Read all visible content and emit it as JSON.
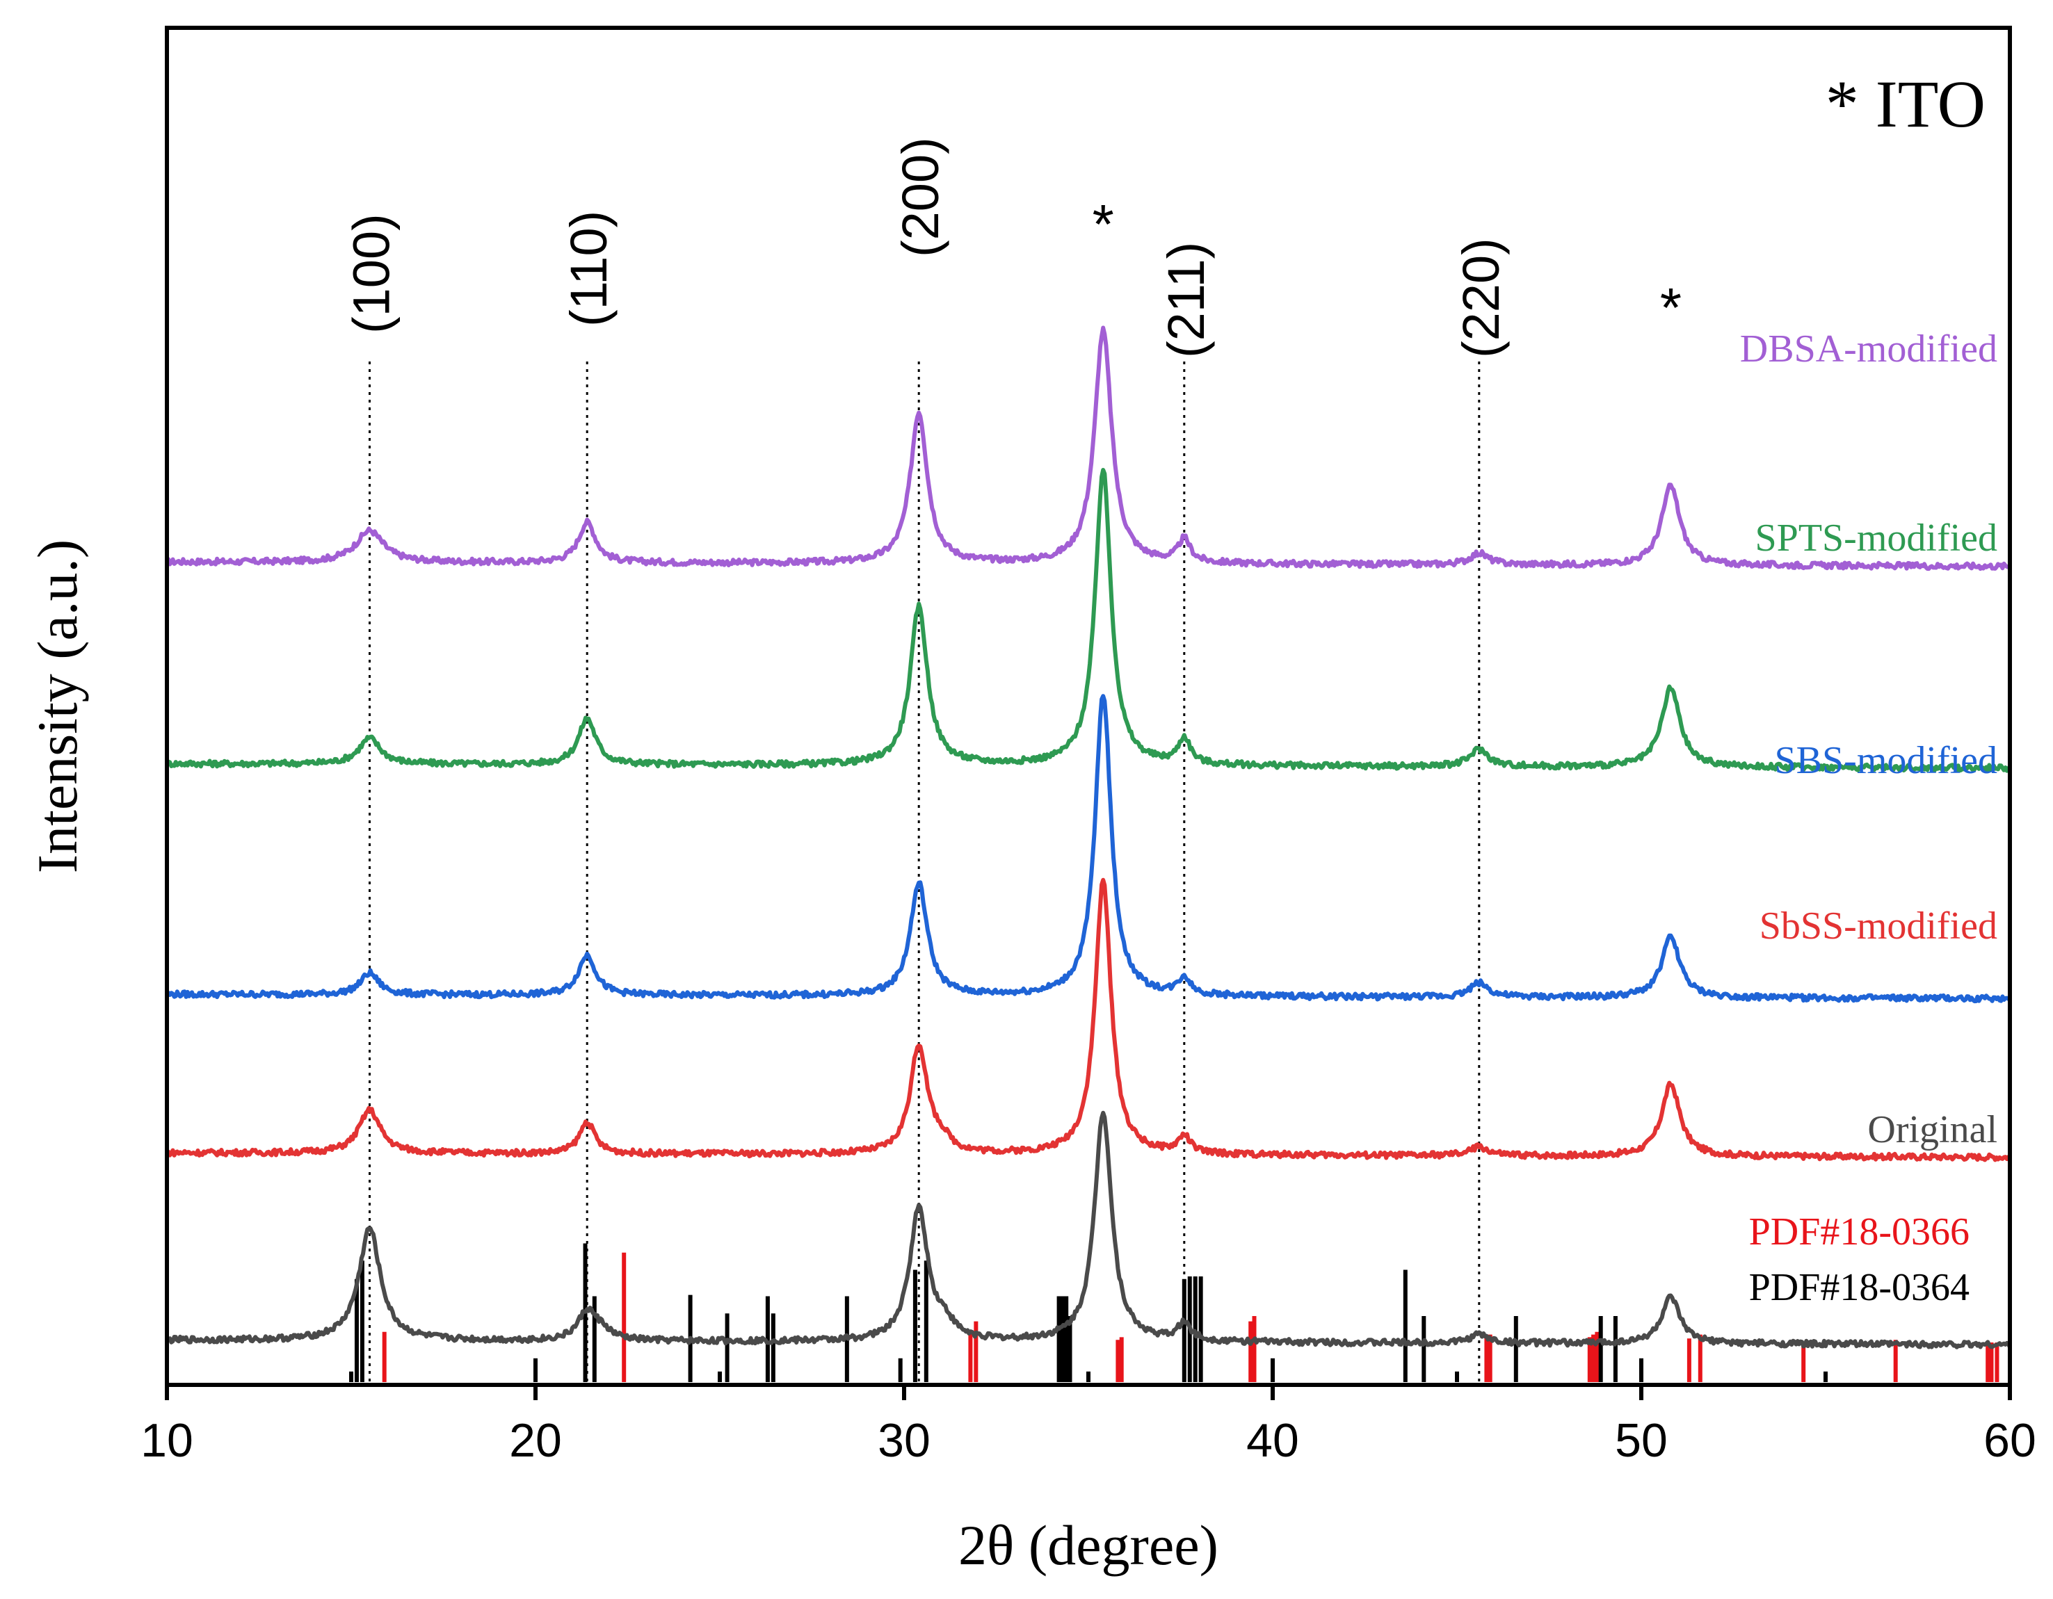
{
  "chart_data": {
    "type": "line",
    "xlabel": "2θ (degree)",
    "ylabel": "Intensity (a.u.)",
    "xlim": [
      10,
      60
    ],
    "x_ticks": [
      "10",
      "20",
      "30",
      "40",
      "50",
      "60"
    ],
    "ito_legend": "* ITO",
    "ito_marker": "*",
    "ito_peaks": [
      35.4,
      50.8
    ],
    "hkl_labels": [
      {
        "label": "(100)",
        "x": 15.5
      },
      {
        "label": "(110)",
        "x": 21.4
      },
      {
        "label": "(200)",
        "x": 30.4
      },
      {
        "label": "(211)",
        "x": 37.6
      },
      {
        "label": "(220)",
        "x": 45.6
      }
    ],
    "series": [
      {
        "name": "DBSA-modified",
        "color": "#a25fd4",
        "baseline": 5.7,
        "peaks": [
          [
            15.5,
            0.22,
            0.45
          ],
          [
            21.4,
            0.28,
            0.28
          ],
          [
            30.4,
            1.05,
            0.28
          ],
          [
            35.4,
            1.62,
            0.28
          ],
          [
            37.6,
            0.16,
            0.2
          ],
          [
            45.6,
            0.08,
            0.3
          ],
          [
            50.8,
            0.55,
            0.3
          ]
        ]
      },
      {
        "name": "SPTS-modified",
        "color": "#2e9a52",
        "baseline": 4.3,
        "peaks": [
          [
            15.5,
            0.18,
            0.35
          ],
          [
            21.4,
            0.32,
            0.28
          ],
          [
            30.4,
            1.1,
            0.28
          ],
          [
            35.4,
            2.05,
            0.26
          ],
          [
            37.6,
            0.18,
            0.2
          ],
          [
            45.6,
            0.12,
            0.3
          ],
          [
            50.8,
            0.55,
            0.3
          ]
        ]
      },
      {
        "name": "SBS-modified",
        "color": "#1f64d6",
        "baseline": 2.7,
        "peaks": [
          [
            15.5,
            0.15,
            0.3
          ],
          [
            21.4,
            0.28,
            0.28
          ],
          [
            30.4,
            0.78,
            0.28
          ],
          [
            35.4,
            2.1,
            0.26
          ],
          [
            37.6,
            0.12,
            0.2
          ],
          [
            45.6,
            0.1,
            0.3
          ],
          [
            50.8,
            0.42,
            0.3
          ]
        ]
      },
      {
        "name": "SbSS-modified",
        "color": "#e33333",
        "baseline": 1.6,
        "peaks": [
          [
            15.5,
            0.3,
            0.35
          ],
          [
            21.4,
            0.22,
            0.25
          ],
          [
            30.4,
            0.75,
            0.28
          ],
          [
            31.0,
            0.08,
            0.3
          ],
          [
            35.4,
            1.9,
            0.26
          ],
          [
            37.6,
            0.12,
            0.2
          ],
          [
            45.6,
            0.06,
            0.3
          ],
          [
            50.8,
            0.5,
            0.3
          ]
        ]
      },
      {
        "name": "Original",
        "color": "#4a4a4a",
        "baseline": 0.3,
        "peaks": [
          [
            15.5,
            0.78,
            0.35
          ],
          [
            21.4,
            0.2,
            0.3
          ],
          [
            21.8,
            0.06,
            0.3
          ],
          [
            30.4,
            0.92,
            0.3
          ],
          [
            31.1,
            0.1,
            0.3
          ],
          [
            35.4,
            1.6,
            0.28
          ],
          [
            37.6,
            0.12,
            0.22
          ],
          [
            45.6,
            0.06,
            0.3
          ],
          [
            50.8,
            0.32,
            0.3
          ]
        ]
      }
    ],
    "reference_patterns": [
      {
        "name": "PDF#18-0366",
        "color": "#e8141a",
        "sticks": [
          [
            15.9,
            0.38
          ],
          [
            22.4,
            0.98
          ],
          [
            31.8,
            0.38
          ],
          [
            31.95,
            0.46
          ],
          [
            35.8,
            0.32
          ],
          [
            35.9,
            0.34
          ],
          [
            39.4,
            0.46
          ],
          [
            39.5,
            0.5
          ],
          [
            45.8,
            0.35
          ],
          [
            45.9,
            0.36
          ],
          [
            48.6,
            0.34
          ],
          [
            48.7,
            0.36
          ],
          [
            48.8,
            0.38
          ],
          [
            51.3,
            0.33
          ],
          [
            51.6,
            0.36
          ],
          [
            54.4,
            0.3
          ],
          [
            56.9,
            0.32
          ],
          [
            59.4,
            0.3
          ],
          [
            59.5,
            0.3
          ],
          [
            59.65,
            0.3
          ]
        ]
      },
      {
        "name": "PDF#18-0364",
        "color": "#000000",
        "sticks": [
          [
            15.0,
            0.08
          ],
          [
            15.15,
            0.78
          ],
          [
            15.3,
            0.92
          ],
          [
            20.0,
            0.18
          ],
          [
            21.35,
            1.05
          ],
          [
            21.6,
            0.65
          ],
          [
            24.2,
            0.66
          ],
          [
            25.0,
            0.08
          ],
          [
            25.2,
            0.52
          ],
          [
            26.3,
            0.65
          ],
          [
            26.45,
            0.52
          ],
          [
            28.45,
            0.65
          ],
          [
            29.9,
            0.18
          ],
          [
            30.3,
            0.85
          ],
          [
            30.6,
            0.92
          ],
          [
            34.2,
            0.65
          ],
          [
            34.3,
            0.65
          ],
          [
            34.4,
            0.65
          ],
          [
            34.5,
            0.5
          ],
          [
            35.0,
            0.08
          ],
          [
            37.6,
            0.78
          ],
          [
            37.75,
            0.8
          ],
          [
            37.9,
            0.8
          ],
          [
            38.05,
            0.8
          ],
          [
            40.0,
            0.18
          ],
          [
            43.6,
            0.85
          ],
          [
            44.1,
            0.5
          ],
          [
            45.0,
            0.08
          ],
          [
            46.6,
            0.5
          ],
          [
            48.9,
            0.5
          ],
          [
            49.3,
            0.5
          ],
          [
            50.0,
            0.18
          ],
          [
            55.0,
            0.08
          ]
        ]
      }
    ]
  }
}
